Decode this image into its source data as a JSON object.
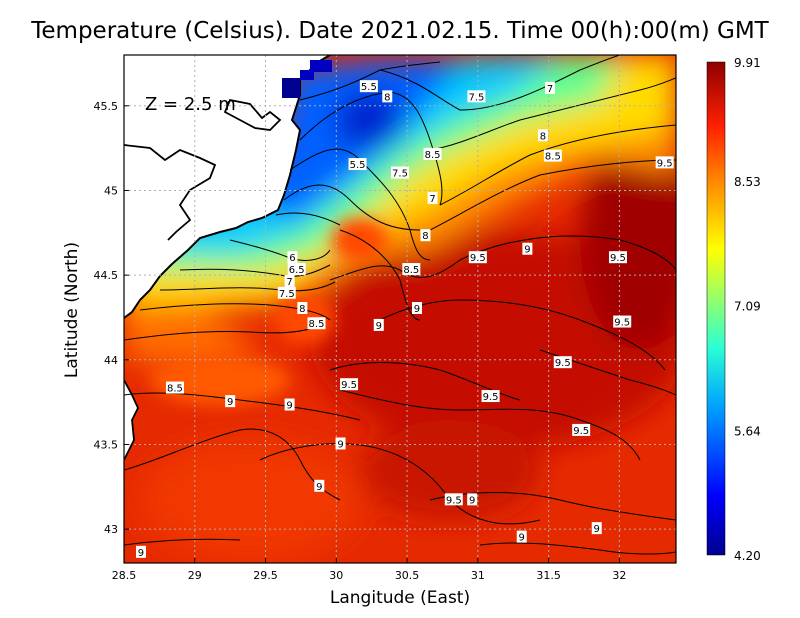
{
  "title": "Temperature (Celsius). Date 2021.02.15. Time 00(h):00(m)  GMT",
  "depth_label": "Z  =  2.5  m",
  "xlabel": "Langitude (East)",
  "ylabel": "Latitude (North)",
  "chart_data": {
    "type": "heatmap",
    "title": "Temperature (Celsius). Date 2021.02.15. Time 00(h):00(m)  GMT",
    "xlabel": "Langitude (East)",
    "ylabel": "Latitude (North)",
    "xlim": [
      28.5,
      32.4
    ],
    "ylim": [
      42.8,
      45.8
    ],
    "x_ticks": [
      "28.5",
      "29",
      "29.5",
      "30",
      "30.5",
      "31",
      "31.5",
      "32"
    ],
    "y_ticks": [
      "43",
      "43.5",
      "44",
      "44.5",
      "45",
      "45.5"
    ],
    "colorbar": {
      "min": 4.2,
      "max": 9.91,
      "tick_labels": [
        "9.91",
        "8.53",
        "7.09",
        "5.64",
        "4.20"
      ],
      "tick_values": [
        9.91,
        8.53,
        7.09,
        5.64,
        4.2
      ]
    },
    "grid": true,
    "contour_labels": [
      {
        "text": "5.5",
        "lon": 30.23,
        "lat": 45.61
      },
      {
        "text": "8",
        "lon": 30.36,
        "lat": 45.55
      },
      {
        "text": "7.5",
        "lon": 30.99,
        "lat": 45.55
      },
      {
        "text": "7",
        "lon": 31.51,
        "lat": 45.6
      },
      {
        "text": "8",
        "lon": 31.46,
        "lat": 45.32
      },
      {
        "text": "8.5",
        "lon": 31.53,
        "lat": 45.2
      },
      {
        "text": "9.5",
        "lon": 32.32,
        "lat": 45.16
      },
      {
        "text": "8.5",
        "lon": 30.68,
        "lat": 45.21
      },
      {
        "text": "5.5",
        "lon": 30.15,
        "lat": 45.15
      },
      {
        "text": "7.5",
        "lon": 30.45,
        "lat": 45.1
      },
      {
        "text": "7",
        "lon": 30.68,
        "lat": 44.95
      },
      {
        "text": "8",
        "lon": 30.63,
        "lat": 44.73
      },
      {
        "text": "9",
        "lon": 31.35,
        "lat": 44.65
      },
      {
        "text": "9.5",
        "lon": 31.0,
        "lat": 44.6
      },
      {
        "text": "9.5",
        "lon": 31.99,
        "lat": 44.6
      },
      {
        "text": "6",
        "lon": 29.69,
        "lat": 44.6
      },
      {
        "text": "6.5",
        "lon": 29.72,
        "lat": 44.53
      },
      {
        "text": "8.5",
        "lon": 30.53,
        "lat": 44.53
      },
      {
        "text": "7",
        "lon": 29.67,
        "lat": 44.46
      },
      {
        "text": "7.5",
        "lon": 29.65,
        "lat": 44.39
      },
      {
        "text": "8",
        "lon": 29.76,
        "lat": 44.3
      },
      {
        "text": "9",
        "lon": 30.57,
        "lat": 44.3
      },
      {
        "text": "8.5",
        "lon": 29.86,
        "lat": 44.21
      },
      {
        "text": "9",
        "lon": 30.3,
        "lat": 44.2
      },
      {
        "text": "9.5",
        "lon": 32.02,
        "lat": 44.22
      },
      {
        "text": "9.5",
        "lon": 31.6,
        "lat": 43.98
      },
      {
        "text": "8.5",
        "lon": 28.86,
        "lat": 43.83
      },
      {
        "text": "9.5",
        "lon": 30.09,
        "lat": 43.85
      },
      {
        "text": "9.5",
        "lon": 31.09,
        "lat": 43.78
      },
      {
        "text": "9",
        "lon": 29.25,
        "lat": 43.75
      },
      {
        "text": "9",
        "lon": 29.67,
        "lat": 43.73
      },
      {
        "text": "9.5",
        "lon": 31.73,
        "lat": 43.58
      },
      {
        "text": "9",
        "lon": 30.03,
        "lat": 43.5
      },
      {
        "text": "9",
        "lon": 29.88,
        "lat": 43.25
      },
      {
        "text": "9.5",
        "lon": 30.83,
        "lat": 43.17
      },
      {
        "text": "9",
        "lon": 30.96,
        "lat": 43.17
      },
      {
        "text": "9",
        "lon": 31.84,
        "lat": 43.0
      },
      {
        "text": "9",
        "lon": 31.31,
        "lat": 42.95
      },
      {
        "text": "9",
        "lon": 28.62,
        "lat": 42.86
      }
    ]
  }
}
